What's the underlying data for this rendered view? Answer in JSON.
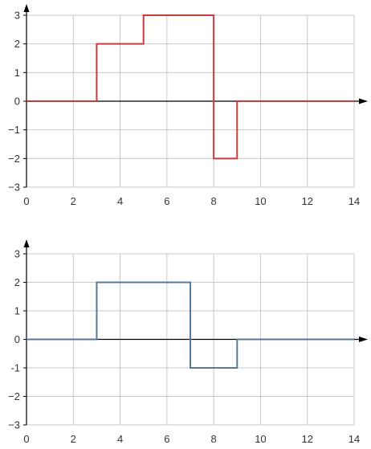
{
  "chart_data": [
    {
      "type": "line",
      "step": true,
      "title": "",
      "xlabel": "",
      "ylabel": "",
      "xlim": [
        0,
        14
      ],
      "ylim": [
        -3,
        3
      ],
      "xticks": [
        0,
        2,
        4,
        6,
        8,
        10,
        12,
        14
      ],
      "yticks": [
        -3,
        -2,
        -1,
        0,
        1,
        2,
        3
      ],
      "xtick_labels": [
        "0",
        "2",
        "4",
        "6",
        "8",
        "10",
        "12",
        "14"
      ],
      "ytick_labels": [
        "−3",
        "−2",
        "−1",
        "0",
        "1",
        "2",
        "3"
      ],
      "grid": true,
      "color": "#cc3b3b",
      "points": [
        [
          0,
          0
        ],
        [
          3,
          0
        ],
        [
          3,
          2
        ],
        [
          5,
          2
        ],
        [
          5,
          3
        ],
        [
          8,
          3
        ],
        [
          8,
          -2
        ],
        [
          9,
          -2
        ],
        [
          9,
          0
        ],
        [
          14,
          0
        ]
      ]
    },
    {
      "type": "line",
      "step": true,
      "title": "",
      "xlabel": "",
      "ylabel": "",
      "xlim": [
        0,
        14
      ],
      "ylim": [
        -3,
        3
      ],
      "xticks": [
        0,
        2,
        4,
        6,
        8,
        10,
        12,
        14
      ],
      "yticks": [
        -3,
        -2,
        -1,
        0,
        1,
        2,
        3
      ],
      "xtick_labels": [
        "0",
        "2",
        "4",
        "6",
        "8",
        "10",
        "12",
        "14"
      ],
      "ytick_labels": [
        "−3",
        "−2",
        "-1",
        "0",
        "1",
        "2",
        "3"
      ],
      "grid": true,
      "color": "#5a7a99",
      "points": [
        [
          0,
          0
        ],
        [
          3,
          0
        ],
        [
          3,
          2
        ],
        [
          7,
          2
        ],
        [
          7,
          -1
        ],
        [
          9,
          -1
        ],
        [
          9,
          0
        ],
        [
          14,
          0
        ]
      ]
    }
  ]
}
